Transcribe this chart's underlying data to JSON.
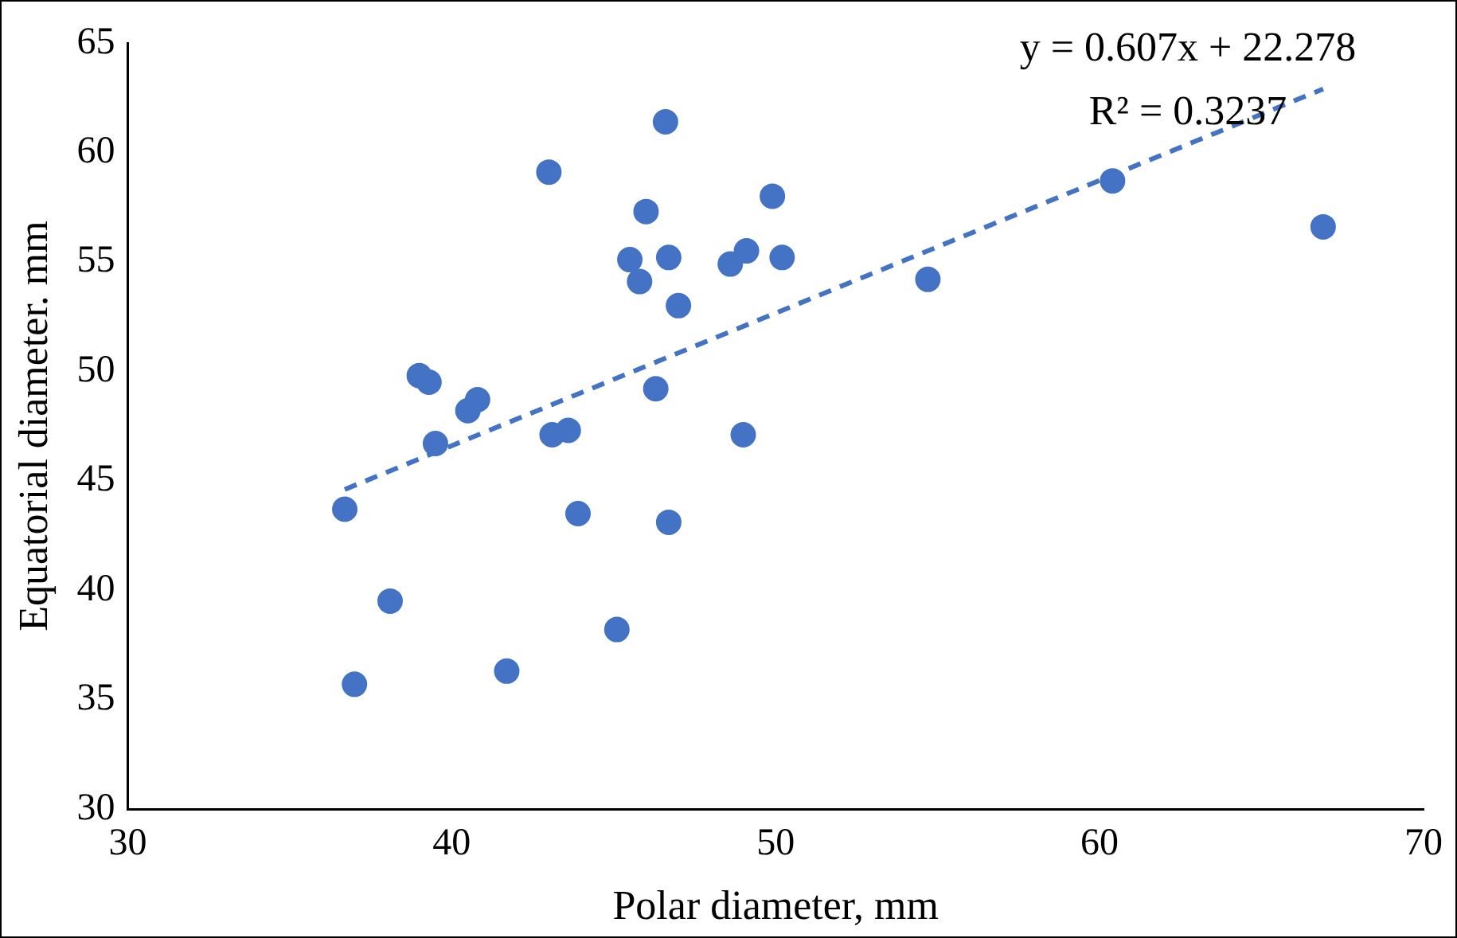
{
  "chart_data": {
    "type": "scatter",
    "xlabel": "Polar diameter, mm",
    "ylabel": "Equatorial diameter. mm",
    "annotations": [
      "y = 0.607x + 22.278",
      "R² = 0.3237"
    ],
    "xlim": [
      30,
      70
    ],
    "xticks": [
      30,
      40,
      50,
      60,
      70
    ],
    "ylim": [
      30,
      65
    ],
    "yticks": [
      30,
      35,
      40,
      45,
      50,
      55,
      60,
      65
    ],
    "grid": false,
    "legend": false,
    "marker": "circle",
    "series": [
      {
        "color": "#4472c4",
        "x": [
          36.7,
          37.0,
          38.1,
          39.0,
          39.3,
          39.5,
          40.5,
          40.8,
          41.7,
          43.0,
          43.1,
          43.6,
          43.9,
          45.1,
          45.5,
          45.8,
          46.0,
          46.3,
          46.6,
          46.7,
          46.7,
          47.0,
          48.6,
          49.1,
          49.0,
          49.9,
          50.2,
          54.7,
          60.4,
          66.9
        ],
        "values": [
          43.7,
          35.7,
          39.5,
          49.8,
          49.5,
          46.7,
          48.2,
          48.7,
          36.3,
          59.1,
          47.1,
          47.3,
          43.5,
          38.2,
          55.1,
          54.1,
          57.3,
          49.2,
          61.4,
          55.2,
          43.1,
          53.0,
          54.9,
          55.5,
          47.1,
          58.0,
          55.2,
          54.2,
          58.7,
          56.6
        ]
      },
      {
        "type": "line",
        "color": "#4472c4",
        "marker": "none",
        "line_style": "dashed",
        "x": [
          36.7,
          66.9
        ],
        "values": [
          44.6,
          62.9
        ]
      }
    ]
  }
}
